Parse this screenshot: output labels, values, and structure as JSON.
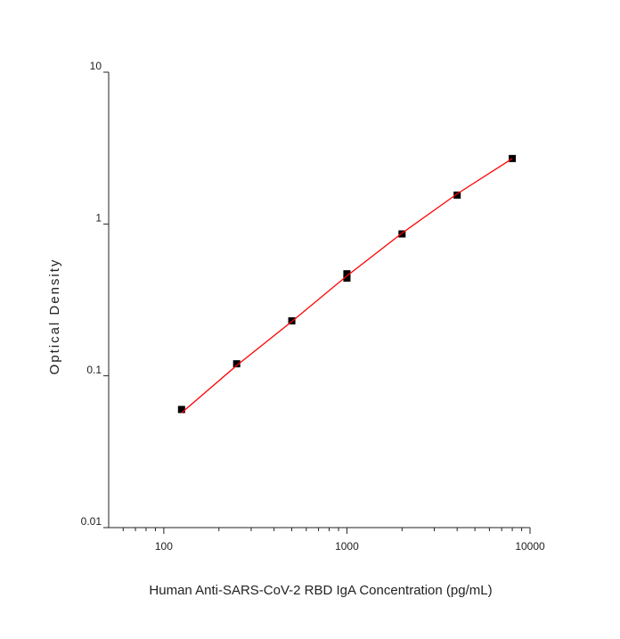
{
  "chart_data": {
    "type": "scatter",
    "x_label": "Human Anti-SARS-CoV-2 RBD IgA Concentration (pg/mL)",
    "y_label": "Optical Density",
    "xscale": "log",
    "yscale": "log",
    "xlim": [
      50,
      10000
    ],
    "ylim": [
      0.01,
      10
    ],
    "xticks": [
      100,
      1000,
      10000
    ],
    "xminorticks": [
      60,
      70,
      80,
      90,
      200,
      300,
      400,
      500,
      600,
      700,
      800,
      900,
      2000,
      3000,
      4000,
      5000,
      6000,
      7000,
      8000,
      9000
    ],
    "yticks": [
      0.01,
      0.1,
      1,
      10
    ],
    "series": [
      {
        "style": "marker",
        "color": "#000000",
        "x": [
          125,
          250,
          500,
          1000,
          1000,
          2000,
          4000,
          8000
        ],
        "values": [
          0.06,
          0.12,
          0.23,
          0.47,
          0.44,
          0.86,
          1.55,
          2.7
        ]
      },
      {
        "style": "line",
        "color": "#ff0000",
        "x": [
          125,
          250,
          500,
          1000,
          2000,
          4000,
          8000
        ],
        "values": [
          0.057,
          0.117,
          0.228,
          0.455,
          0.87,
          1.58,
          2.7
        ]
      }
    ]
  }
}
